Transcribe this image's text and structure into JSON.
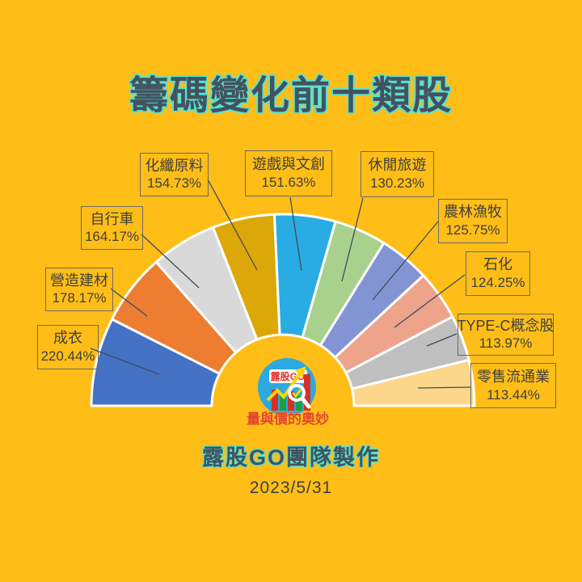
{
  "page": {
    "title": "籌碼變化前十類股",
    "credit": "露股GO團隊製作",
    "date": "2023/5/31",
    "background_color": "#FFBE17",
    "title_color": "#44525F",
    "title_outline_color": "#54E3D2"
  },
  "logo": {
    "brand": "露股GO",
    "tagline": "量與價的奧妙",
    "circle_color": "#2CA9E1",
    "brand_color": "#E53228",
    "tagline_color": "#E8432E"
  },
  "chart_data": {
    "type": "pie",
    "variant": "semicircle-donut-fan",
    "title": "籌碼變化前十類股",
    "unit": "%",
    "span_degrees": 180,
    "start_angle_degrees": 180,
    "legend_position": "callout-boxes",
    "items": [
      {
        "label": "成衣",
        "value": 220.44,
        "value_label": "220.44%",
        "color": "#4472C4"
      },
      {
        "label": "營造建材",
        "value": 178.17,
        "value_label": "178.17%",
        "color": "#ED7D31"
      },
      {
        "label": "自行車",
        "value": 164.17,
        "value_label": "164.17%",
        "color": "#D9D9D9"
      },
      {
        "label": "化纖原料",
        "value": 154.73,
        "value_label": "154.73%",
        "color": "#DCA708"
      },
      {
        "label": "遊戲與文創",
        "value": 151.63,
        "value_label": "151.63%",
        "color": "#29ACE3"
      },
      {
        "label": "休閒旅遊",
        "value": 130.23,
        "value_label": "130.23%",
        "color": "#A9D18E"
      },
      {
        "label": "農林漁牧",
        "value": 125.75,
        "value_label": "125.75%",
        "color": "#8295D2"
      },
      {
        "label": "石化",
        "value": 124.25,
        "value_label": "124.25%",
        "color": "#EEA38B"
      },
      {
        "label": "TYPE-C概念股",
        "value": 113.97,
        "value_label": "113.97%",
        "color": "#BFBFBF"
      },
      {
        "label": "零售流通業",
        "value": 113.44,
        "value_label": "113.44%",
        "color": "#FCD68A"
      }
    ]
  }
}
